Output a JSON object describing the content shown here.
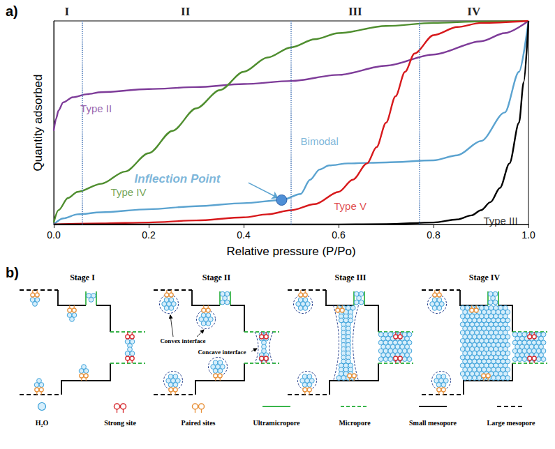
{
  "chart_data": {
    "type": "line",
    "panel_label": "a)",
    "xlabel": "Relative pressure (P/Po)",
    "ylabel": "Quantity adsorbed",
    "xlim": [
      0,
      1
    ],
    "xticks": [
      {
        "value": 0,
        "label": "0.0"
      },
      0.2,
      0.4,
      0.6,
      0.8,
      {
        "value": 1,
        "label": "1.0"
      }
    ],
    "ylim": [
      0,
      1
    ],
    "tick_labels": "x",
    "grid": false,
    "regions": [
      {
        "label": "I",
        "from": 0,
        "to": 0.055
      },
      {
        "label": "II",
        "from": 0.055,
        "to": 0.5
      },
      {
        "label": "III",
        "from": 0.5,
        "to": 0.77
      },
      {
        "label": "IV",
        "from": 0.77,
        "to": 1
      }
    ],
    "inflection_point": {
      "label": "Inflection Point",
      "series": "Bimodal",
      "x": 0.48,
      "y": 0.12,
      "label_x": 0.17,
      "label_y": 0.225
    },
    "series": [
      {
        "name": "Type II",
        "color": "#7e3c99",
        "label_at": [
          0.056,
          0.57
        ],
        "x": [
          0,
          0.005,
          0.01,
          0.02,
          0.04,
          0.07,
          0.1,
          0.2,
          0.3,
          0.4,
          0.5,
          0.6,
          0.7,
          0.8,
          0.9,
          0.95,
          1.0
        ],
        "values": [
          0.46,
          0.52,
          0.56,
          0.6,
          0.625,
          0.64,
          0.65,
          0.665,
          0.675,
          0.69,
          0.705,
          0.735,
          0.78,
          0.835,
          0.9,
          0.94,
          1.0
        ]
      },
      {
        "name": "Type IV",
        "color": "#4f8e2f",
        "label_at": [
          0.12,
          0.16
        ],
        "x": [
          0,
          0.01,
          0.03,
          0.05,
          0.1,
          0.15,
          0.2,
          0.25,
          0.3,
          0.35,
          0.4,
          0.45,
          0.5,
          0.55,
          0.6,
          0.7,
          0.8,
          0.9,
          1.0
        ],
        "values": [
          0.01,
          0.07,
          0.13,
          0.16,
          0.2,
          0.26,
          0.35,
          0.46,
          0.57,
          0.66,
          0.75,
          0.82,
          0.87,
          0.91,
          0.94,
          0.975,
          0.99,
          0.997,
          1.0
        ]
      },
      {
        "name": "Bimodal",
        "color": "#5ba3d0",
        "label_at": [
          0.52,
          0.41
        ],
        "x": [
          0,
          0.02,
          0.05,
          0.1,
          0.2,
          0.3,
          0.4,
          0.48,
          0.52,
          0.54,
          0.56,
          0.58,
          0.62,
          0.7,
          0.8,
          0.85,
          0.9,
          0.95,
          0.98,
          1.0
        ],
        "values": [
          0,
          0.03,
          0.05,
          0.06,
          0.075,
          0.09,
          0.105,
          0.12,
          0.15,
          0.22,
          0.27,
          0.29,
          0.3,
          0.305,
          0.315,
          0.34,
          0.41,
          0.55,
          0.75,
          1.0
        ]
      },
      {
        "name": "Type V",
        "color": "#d7191c",
        "label_at": [
          0.59,
          0.09
        ],
        "x": [
          0,
          0.1,
          0.2,
          0.3,
          0.4,
          0.45,
          0.5,
          0.55,
          0.6,
          0.63,
          0.66,
          0.68,
          0.7,
          0.72,
          0.74,
          0.76,
          0.8,
          0.85,
          0.9,
          1.0
        ],
        "values": [
          0,
          0.005,
          0.01,
          0.02,
          0.035,
          0.05,
          0.07,
          0.1,
          0.16,
          0.22,
          0.3,
          0.38,
          0.5,
          0.63,
          0.75,
          0.84,
          0.93,
          0.97,
          0.99,
          1.0
        ]
      },
      {
        "name": "Type III",
        "color": "#000000",
        "label_at": [
          0.905,
          0.02
        ],
        "x": [
          0,
          0.4,
          0.6,
          0.7,
          0.8,
          0.85,
          0.88,
          0.9,
          0.92,
          0.94,
          0.96,
          0.98,
          0.99,
          1.0
        ],
        "values": [
          0,
          0,
          0,
          0.002,
          0.01,
          0.025,
          0.045,
          0.07,
          0.11,
          0.18,
          0.3,
          0.5,
          0.7,
          1.0
        ]
      }
    ]
  },
  "diagram": {
    "panel_label": "b)",
    "stages": [
      {
        "title": "Stage I"
      },
      {
        "title": "Stage II",
        "labels": [
          "Convex interface",
          "Concave interface"
        ]
      },
      {
        "title": "Stage III"
      },
      {
        "title": "Stage IV"
      }
    ],
    "key": [
      "H₂O",
      "Strong site",
      "Paired sites",
      "Ultramicropore",
      "Micropore",
      "Small mesopore",
      "Large mesopore"
    ]
  }
}
